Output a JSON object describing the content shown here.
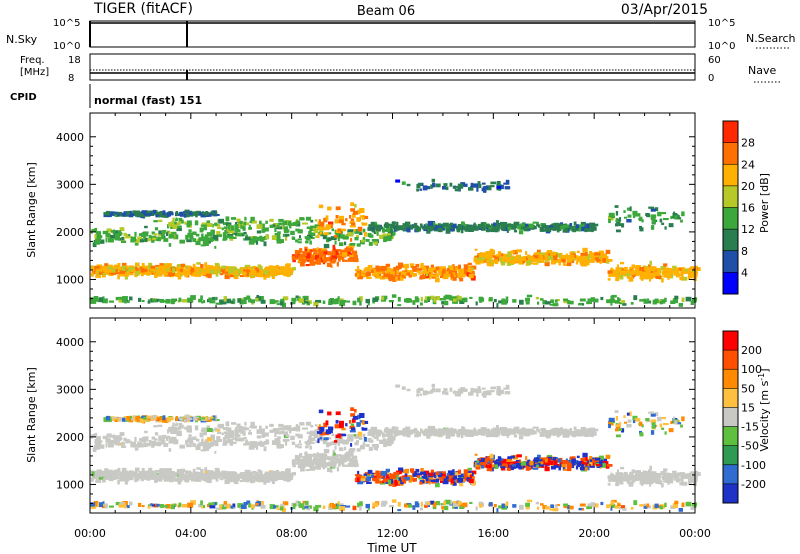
{
  "header": {
    "radar": "TIGER (fitACF)",
    "beam": "Beam 06",
    "date": "03/Apr/2015"
  },
  "nsky_panel": {
    "left_label": "N.Sky",
    "left_ticks": [
      "10^5",
      "10^0"
    ],
    "right_ticks": [
      "10^5",
      "10^0"
    ],
    "right_label": "N.Search"
  },
  "freq_panel": {
    "left_label_line1": "Freq.",
    "left_label_line2": "[MHz]",
    "left_ticks": [
      "18",
      "8"
    ],
    "right_ticks": [
      "60",
      "0"
    ],
    "right_label": "Nave"
  },
  "cpid": {
    "label": "CPID",
    "value": "normal (fast) 151"
  },
  "chart_data": [
    {
      "type": "heatmap",
      "name": "power",
      "ylabel": "Slant Range [km]",
      "y_ticks": [
        "1000",
        "2000",
        "3000",
        "4000"
      ],
      "ylim": [
        400,
        4500
      ],
      "xlim_hours": [
        0,
        24
      ],
      "colorbar_label": "Power [dB]",
      "colorbar_ticks": [
        "4",
        "8",
        "12",
        "16",
        "20",
        "24",
        "28"
      ],
      "colorbar_colors": [
        "#0000ff",
        "#1f4fa8",
        "#2a7d4e",
        "#3ca83c",
        "#b7c928",
        "#ffb000",
        "#ff7000",
        "#ff2800"
      ]
    },
    {
      "type": "heatmap",
      "name": "velocity",
      "ylabel": "Slant Range [km]",
      "y_ticks": [
        "1000",
        "2000",
        "3000",
        "4000"
      ],
      "ylim": [
        400,
        4500
      ],
      "xlim_hours": [
        0,
        24
      ],
      "colorbar_label": "Velocity [m s",
      "colorbar_label_sup": "-1",
      "colorbar_ticks": [
        "200",
        "100",
        "50",
        "15",
        "-15",
        "-50",
        "-100",
        "-200"
      ],
      "colorbar_colors": [
        "#1e32c8",
        "#2f6bd0",
        "#2f9a52",
        "#5fc040",
        "#c8c8c4",
        "#ffc040",
        "#ff8a00",
        "#ff5000",
        "#ff0000"
      ]
    }
  ],
  "x_axis": {
    "ticks": [
      "00:00",
      "04:00",
      "08:00",
      "12:00",
      "16:00",
      "20:00",
      "00:00"
    ],
    "label": "Time UT"
  }
}
